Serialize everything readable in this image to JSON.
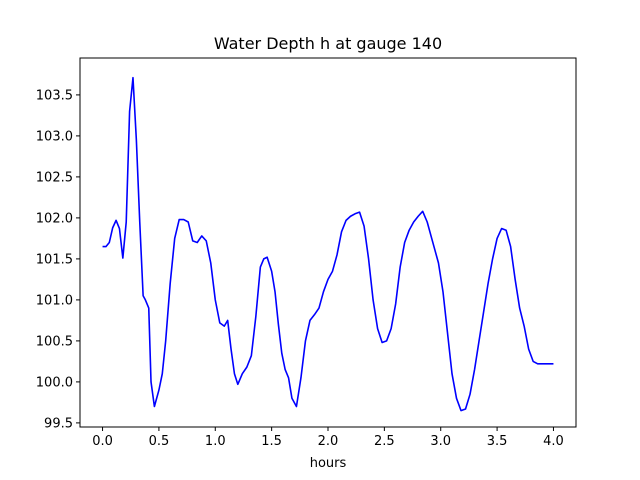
{
  "chart_data": {
    "type": "line",
    "title": "Water Depth h at gauge 140",
    "xlabel": "hours",
    "ylabel": "",
    "xlim": [
      -0.2,
      4.2
    ],
    "ylim": [
      99.45,
      103.95
    ],
    "xticks": [
      0.0,
      0.5,
      1.0,
      1.5,
      2.0,
      2.5,
      3.0,
      3.5,
      4.0
    ],
    "xtick_labels": [
      "0.0",
      "0.5",
      "1.0",
      "1.5",
      "2.0",
      "2.5",
      "3.0",
      "3.5",
      "4.0"
    ],
    "yticks": [
      99.5,
      100.0,
      100.5,
      101.0,
      101.5,
      102.0,
      102.5,
      103.0,
      103.5
    ],
    "ytick_labels": [
      "99.5",
      "100.0",
      "100.5",
      "101.0",
      "101.5",
      "102.0",
      "102.5",
      "103.0",
      "103.5"
    ],
    "grid": false,
    "series": [
      {
        "color": "#0000ff",
        "x": [
          0.0,
          0.03,
          0.06,
          0.09,
          0.12,
          0.15,
          0.18,
          0.21,
          0.24,
          0.27,
          0.3,
          0.33,
          0.36,
          0.38,
          0.41,
          0.43,
          0.46,
          0.5,
          0.53,
          0.56,
          0.6,
          0.64,
          0.68,
          0.72,
          0.76,
          0.8,
          0.84,
          0.88,
          0.92,
          0.96,
          1.0,
          1.04,
          1.08,
          1.11,
          1.14,
          1.17,
          1.2,
          1.24,
          1.28,
          1.32,
          1.36,
          1.4,
          1.43,
          1.46,
          1.5,
          1.53,
          1.56,
          1.59,
          1.62,
          1.65,
          1.68,
          1.72,
          1.76,
          1.8,
          1.84,
          1.88,
          1.92,
          1.96,
          2.0,
          2.04,
          2.08,
          2.12,
          2.16,
          2.2,
          2.24,
          2.28,
          2.32,
          2.36,
          2.4,
          2.44,
          2.48,
          2.52,
          2.56,
          2.6,
          2.64,
          2.68,
          2.72,
          2.76,
          2.8,
          2.84,
          2.88,
          2.92,
          2.95,
          2.98,
          3.02,
          3.06,
          3.1,
          3.14,
          3.18,
          3.22,
          3.26,
          3.3,
          3.34,
          3.38,
          3.42,
          3.46,
          3.5,
          3.54,
          3.58,
          3.62,
          3.66,
          3.7,
          3.74,
          3.78,
          3.82,
          3.86,
          3.9,
          3.94,
          3.98,
          4.0
        ],
        "y": [
          101.65,
          101.65,
          101.7,
          101.88,
          101.97,
          101.87,
          101.51,
          101.95,
          103.3,
          103.71,
          102.95,
          101.95,
          101.05,
          101.0,
          100.9,
          100.0,
          99.7,
          99.9,
          100.1,
          100.5,
          101.2,
          101.75,
          101.98,
          101.98,
          101.95,
          101.72,
          101.7,
          101.78,
          101.72,
          101.45,
          101.0,
          100.72,
          100.68,
          100.75,
          100.4,
          100.1,
          99.97,
          100.1,
          100.18,
          100.32,
          100.8,
          101.4,
          101.5,
          101.52,
          101.35,
          101.1,
          100.7,
          100.35,
          100.15,
          100.05,
          99.8,
          99.7,
          100.05,
          100.5,
          100.75,
          100.82,
          100.9,
          101.1,
          101.25,
          101.35,
          101.55,
          101.83,
          101.97,
          102.02,
          102.05,
          102.07,
          101.9,
          101.5,
          101.0,
          100.65,
          100.48,
          100.5,
          100.65,
          100.95,
          101.4,
          101.7,
          101.85,
          101.95,
          102.02,
          102.08,
          101.95,
          101.75,
          101.6,
          101.45,
          101.1,
          100.6,
          100.1,
          99.8,
          99.65,
          99.67,
          99.85,
          100.15,
          100.5,
          100.85,
          101.2,
          101.5,
          101.75,
          101.87,
          101.85,
          101.65,
          101.25,
          100.9,
          100.68,
          100.4,
          100.25,
          100.22,
          100.22,
          100.22,
          100.22,
          100.22
        ]
      }
    ]
  }
}
